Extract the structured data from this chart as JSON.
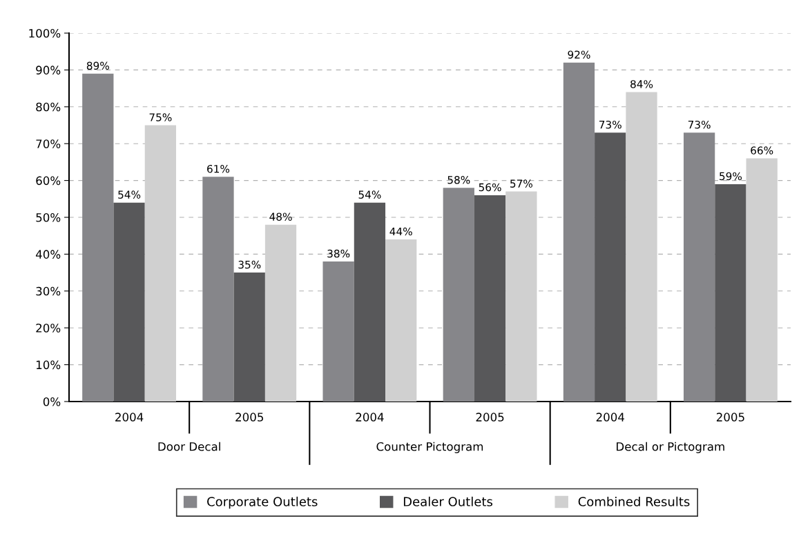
{
  "chart_data": {
    "type": "bar",
    "categories": [
      "2004",
      "2005",
      "2004",
      "2005",
      "2004",
      "2005"
    ],
    "series": [
      {
        "name": "Corporate Outlets",
        "color": "#86868a",
        "values": [
          89,
          61,
          38,
          58,
          92,
          73
        ],
        "value_labels": [
          "89%",
          "61%",
          "38%",
          "58%",
          "92%",
          "73%"
        ]
      },
      {
        "name": "Dealer Outlets",
        "color": "#58585a",
        "values": [
          54,
          35,
          54,
          56,
          73,
          59
        ],
        "value_labels": [
          "54%",
          "35%",
          "54%",
          "56%",
          "73%",
          "59%"
        ]
      },
      {
        "name": "Combined Results",
        "color": "#d0d0d0",
        "values": [
          75,
          48,
          44,
          57,
          84,
          66
        ],
        "value_labels": [
          "75%",
          "48%",
          "44%",
          "57%",
          "84%",
          "66%"
        ]
      }
    ],
    "annotations": [
      "Door Decal",
      "Counter Pictogram",
      "Decal or Pictogram"
    ],
    "ylim": [
      0,
      100
    ],
    "yticks": [
      {
        "value": 0,
        "label": "0%"
      },
      {
        "value": 10,
        "label": "10%"
      },
      {
        "value": 20,
        "label": "20%"
      },
      {
        "value": 30,
        "label": "30%"
      },
      {
        "value": 40,
        "label": "40%"
      },
      {
        "value": 50,
        "label": "50%"
      },
      {
        "value": 60,
        "label": "60%"
      },
      {
        "value": 70,
        "label": "70%"
      },
      {
        "value": 80,
        "label": "80%"
      },
      {
        "value": 90,
        "label": "90%"
      },
      {
        "value": 100,
        "label": "100%"
      }
    ],
    "grid": "y",
    "line_style": "dashed",
    "legend": "bottom"
  }
}
